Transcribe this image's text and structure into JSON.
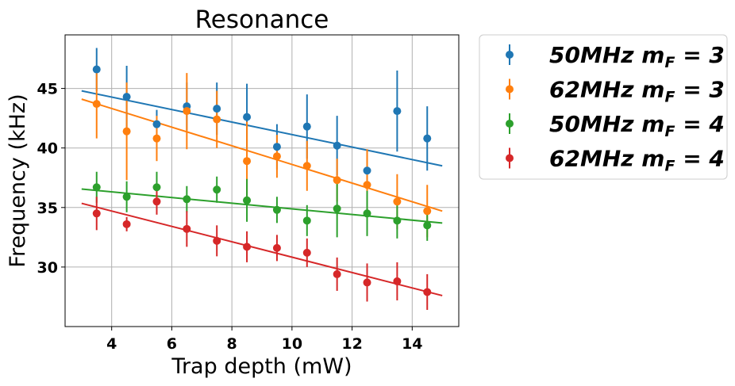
{
  "chart_data": {
    "type": "scatter",
    "title": "Resonance",
    "xlabel": "Trap depth (mW)",
    "ylabel": "Frequency (kHz)",
    "xlim": [
      2.45,
      15.55
    ],
    "ylim": [
      25.0,
      49.5
    ],
    "xticks": [
      "4",
      "6",
      "8",
      "10",
      "12",
      "14"
    ],
    "yticks": [
      "30",
      "35",
      "40",
      "45"
    ],
    "grid": true,
    "legend_position": "outside-right",
    "x": [
      3.5,
      4.5,
      5.5,
      6.5,
      7.5,
      8.5,
      9.5,
      10.5,
      11.5,
      12.5,
      13.5,
      14.5
    ],
    "series": [
      {
        "name": "50MHz m_F = 3",
        "legend_main": "50MHz m",
        "legend_sub": "F",
        "legend_eq": " = 3",
        "color": "#1f77b4",
        "y": [
          46.6,
          44.3,
          42.0,
          43.5,
          43.3,
          42.6,
          40.1,
          41.8,
          40.2,
          38.1,
          43.1,
          40.8
        ],
        "err": [
          1.8,
          2.6,
          1.2,
          2.0,
          2.2,
          2.8,
          1.9,
          2.7,
          2.5,
          1.5,
          3.4,
          2.7
        ],
        "fit": [
          [
            3.0,
            44.8
          ],
          [
            15.0,
            38.5
          ]
        ]
      },
      {
        "name": "62MHz m_F = 3",
        "legend_main": "62MHz m",
        "legend_sub": "F",
        "legend_eq": " = 3",
        "color": "#ff7f0e",
        "y": [
          43.7,
          41.4,
          40.8,
          43.1,
          42.4,
          38.9,
          39.3,
          38.5,
          37.3,
          36.9,
          35.5,
          34.7
        ],
        "err": [
          2.9,
          4.1,
          1.9,
          3.2,
          2.4,
          3.3,
          1.8,
          2.1,
          1.8,
          3.0,
          2.3,
          2.2
        ],
        "fit": [
          [
            3.0,
            44.1
          ],
          [
            15.0,
            34.7
          ]
        ]
      },
      {
        "name": "50MHz m_F = 4",
        "legend_main": "50MHz m",
        "legend_sub": "F",
        "legend_eq": " = 4",
        "color": "#2ca02c",
        "y": [
          36.7,
          35.9,
          36.7,
          35.7,
          36.5,
          35.6,
          34.8,
          33.9,
          34.9,
          34.5,
          33.9,
          33.5
        ],
        "err": [
          1.3,
          1.3,
          1.3,
          1.1,
          1.1,
          1.8,
          1.1,
          1.3,
          2.4,
          1.9,
          1.5,
          1.3
        ],
        "fit": [
          [
            3.0,
            36.55
          ],
          [
            15.0,
            33.7
          ]
        ]
      },
      {
        "name": "62MHz m_F = 4",
        "legend_main": "62MHz m",
        "legend_sub": "F",
        "legend_eq": " = 4",
        "color": "#d62728",
        "y": [
          34.5,
          33.6,
          35.5,
          33.2,
          32.2,
          31.7,
          31.6,
          31.2,
          29.4,
          28.7,
          28.8,
          27.9
        ],
        "err": [
          1.4,
          0.6,
          1.1,
          1.5,
          1.3,
          1.3,
          1.1,
          1.2,
          1.4,
          1.6,
          1.6,
          1.5
        ],
        "fit": [
          [
            3.0,
            35.35
          ],
          [
            15.0,
            27.6
          ]
        ]
      }
    ]
  }
}
